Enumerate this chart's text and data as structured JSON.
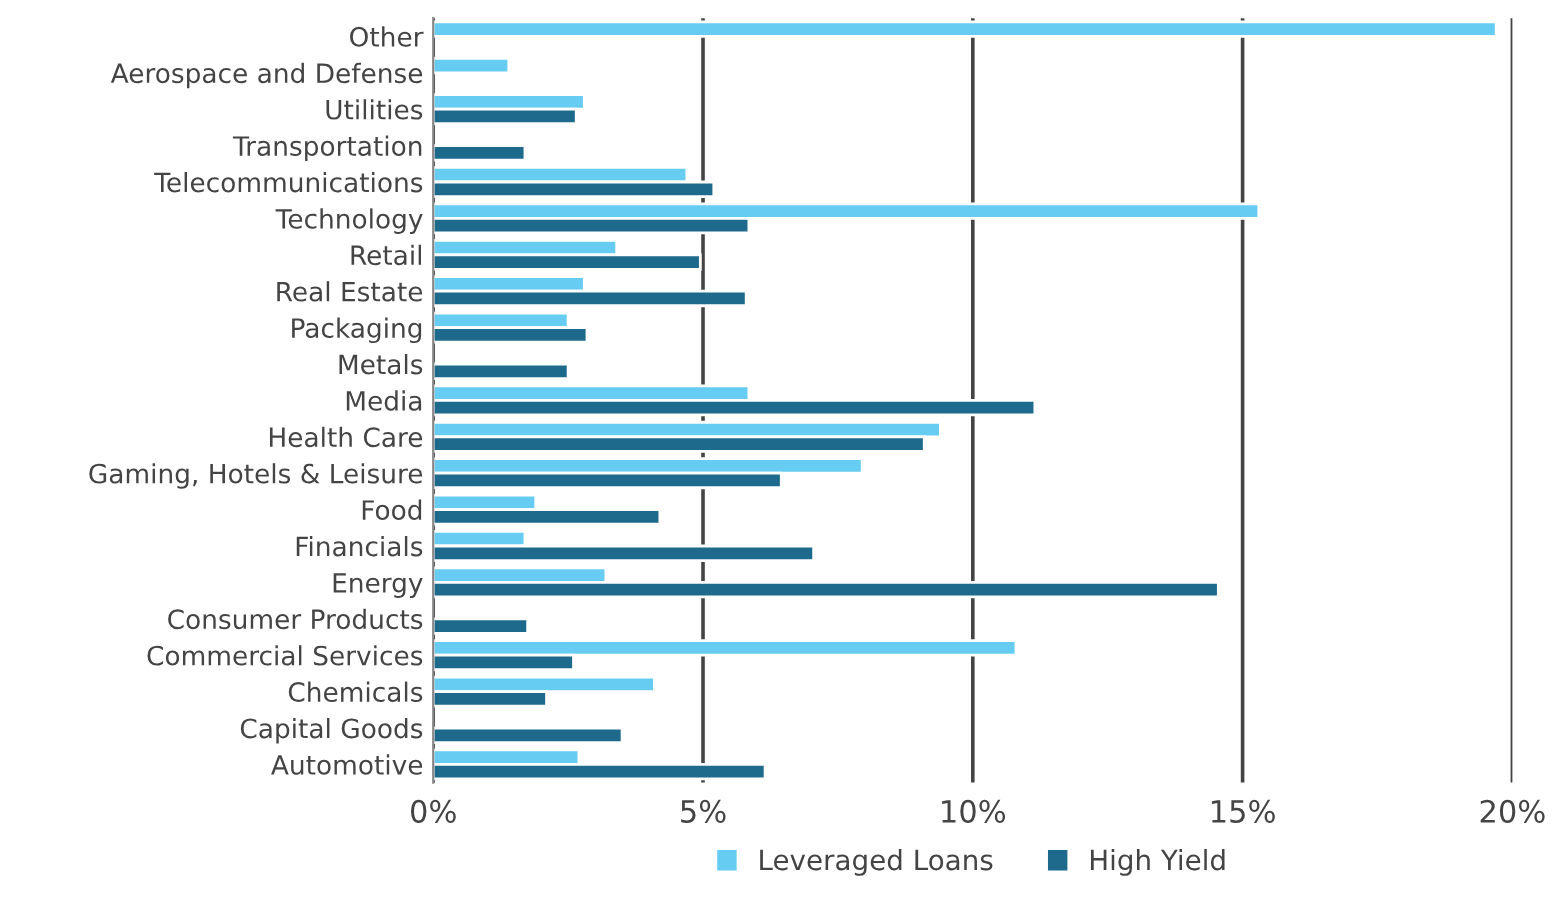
{
  "chart_data": {
    "type": "bar",
    "orientation": "horizontal",
    "categories": [
      "Other",
      "Aerospace and Defense",
      "Utilities",
      "Transportation",
      "Telecommunications",
      "Technology",
      "Retail",
      "Real Estate",
      "Packaging",
      "Metals",
      "Media",
      "Health Care",
      "Gaming, Hotels & Leisure",
      "Food",
      "Financials",
      "Energy",
      "Consumer Products",
      "Commercial Services",
      "Chemicals",
      "Capital Goods",
      "Automotive"
    ],
    "series": [
      {
        "name": "Leveraged Loans",
        "color": "#66ccf2",
        "values": [
          19.7,
          1.4,
          2.8,
          null,
          4.7,
          15.3,
          3.4,
          2.8,
          2.5,
          null,
          5.85,
          9.4,
          7.95,
          1.9,
          1.7,
          3.2,
          null,
          10.8,
          4.1,
          null,
          2.7
        ]
      },
      {
        "name": "High Yield",
        "color": "#1d6a8c",
        "values": [
          null,
          null,
          2.65,
          1.7,
          5.2,
          5.85,
          4.95,
          5.8,
          2.85,
          2.5,
          11.15,
          9.1,
          6.45,
          4.2,
          7.05,
          14.55,
          1.75,
          2.6,
          2.1,
          3.5,
          6.15
        ]
      }
    ],
    "xlim": [
      0,
      20
    ],
    "xticks": [
      {
        "value": 0,
        "label": "0%"
      },
      {
        "value": 5,
        "label": "5%"
      },
      {
        "value": 10,
        "label": "10%"
      },
      {
        "value": 15,
        "label": "15%"
      },
      {
        "value": 20,
        "label": "20%"
      }
    ],
    "grid": "x",
    "legend": "bottom"
  }
}
